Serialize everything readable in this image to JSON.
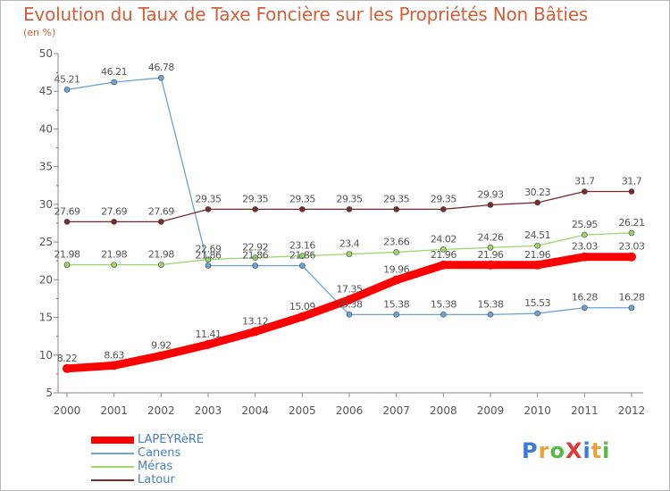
{
  "title": "Evolution du Taux de Taxe Foncière sur les Propriétés Non Bâties",
  "subtitle": "(en %)",
  "logo": {
    "text": "ProXiti",
    "colors": [
      "#3a7bd5",
      "#e8a33d",
      "#59b947",
      "#d93a3a",
      "#3a7bd5",
      "#e8a33d",
      "#59b947"
    ]
  },
  "chart_data": {
    "type": "line",
    "title": "Evolution du Taux de Taxe Foncière sur les Propriétés Non Bâties",
    "ylabel": "(en %)",
    "xlabel": "",
    "x": [
      "2000",
      "2001",
      "2002",
      "2003",
      "2004",
      "2005",
      "2006",
      "2007",
      "2008",
      "2009",
      "2010",
      "2011",
      "2012"
    ],
    "ylim": [
      5,
      50
    ],
    "yticks": [
      "5",
      "10",
      "15",
      "20",
      "25",
      "30",
      "35",
      "40",
      "45",
      "50"
    ],
    "grid": false,
    "legend": "bottom-left",
    "series": [
      {
        "name": "LAPEYRèRE",
        "color": "#ff0000",
        "values": [
          8.22,
          8.63,
          9.92,
          11.41,
          13.12,
          15.09,
          17.35,
          19.96,
          21.96,
          21.96,
          21.96,
          23.03,
          23.03
        ],
        "labels": [
          "8.22",
          "8.63",
          "9.92",
          "11.41",
          "13.12",
          "15.09",
          "17.35",
          "19.96",
          "21.96",
          "21.96",
          "21.96",
          "23.03",
          "23.03"
        ]
      },
      {
        "name": "Canens",
        "color": "#6aa3d5",
        "values": [
          45.21,
          46.21,
          46.78,
          21.86,
          21.86,
          21.86,
          15.38,
          15.38,
          15.38,
          15.38,
          15.53,
          16.28,
          16.28
        ],
        "labels": [
          "45.21",
          "46.21",
          "46.78",
          "21.86",
          "21.86",
          "21.86",
          "15.38",
          "15.38",
          "15.38",
          "15.38",
          "15.53",
          "16.28",
          "16.28"
        ]
      },
      {
        "name": "Méras",
        "color": "#9cd66b",
        "values": [
          21.98,
          21.98,
          21.98,
          22.69,
          22.92,
          23.16,
          23.4,
          23.66,
          24.02,
          24.26,
          24.51,
          25.95,
          26.21
        ],
        "labels": [
          "21.98",
          "21.98",
          "21.98",
          "22.69",
          "22.92",
          "23.16",
          "23.4",
          "23.66",
          "24.02",
          "24.26",
          "24.51",
          "25.95",
          "26.21"
        ]
      },
      {
        "name": "Latour",
        "color": "#7a2a2a",
        "values": [
          27.69,
          27.69,
          27.69,
          29.35,
          29.35,
          29.35,
          29.35,
          29.35,
          29.35,
          29.93,
          30.23,
          31.7,
          31.7
        ],
        "labels": [
          "27.69",
          "27.69",
          "27.69",
          "29.35",
          "29.35",
          "29.35",
          "29.35",
          "29.35",
          "29.35",
          "29.93",
          "30.23",
          "31.7",
          "31.7"
        ]
      }
    ]
  }
}
